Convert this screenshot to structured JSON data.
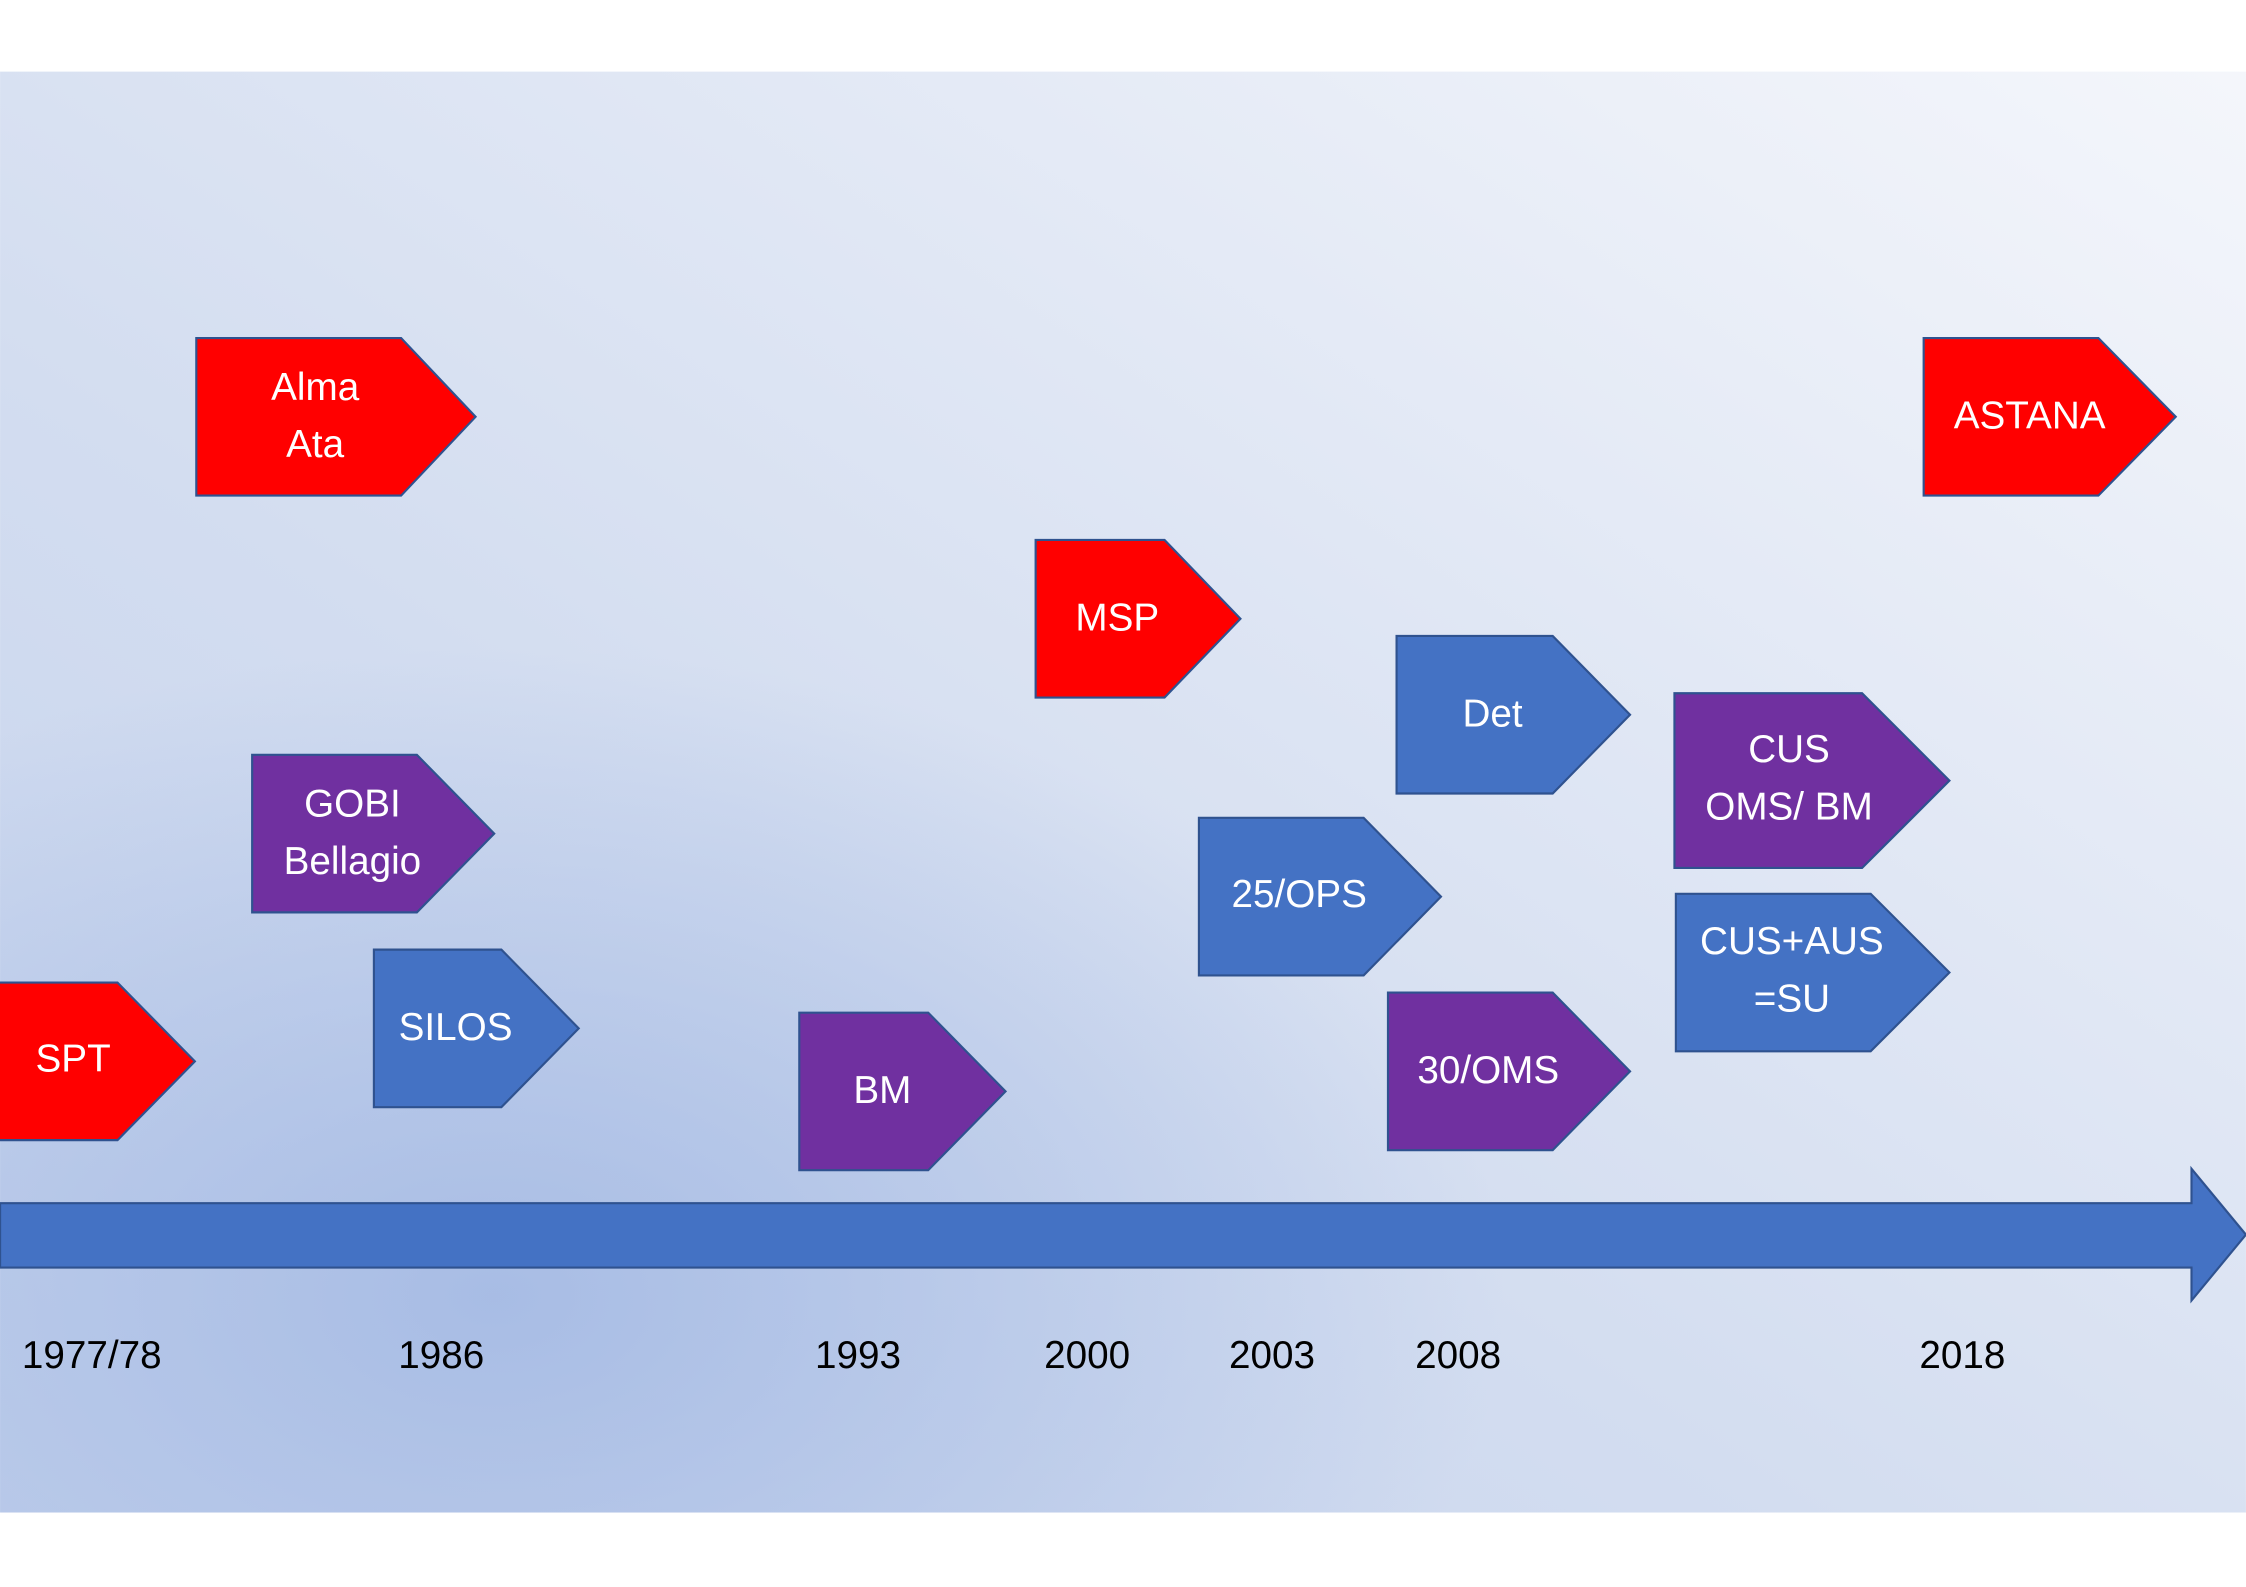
{
  "events": [
    {
      "lines": [
        "Alma",
        "Ata"
      ]
    },
    {
      "lines": [
        "SPT"
      ]
    },
    {
      "lines": [
        "GOBI",
        "Bellagio"
      ]
    },
    {
      "lines": [
        "SILOS"
      ]
    },
    {
      "lines": [
        "BM"
      ]
    },
    {
      "lines": [
        "MSP"
      ]
    },
    {
      "lines": [
        "25/OPS"
      ]
    },
    {
      "lines": [
        "Det"
      ]
    },
    {
      "lines": [
        "30/OMS"
      ]
    },
    {
      "lines": [
        "CUS",
        "OMS/ BM"
      ]
    },
    {
      "lines": [
        "CUS+AUS",
        "=SU"
      ]
    },
    {
      "lines": [
        "ASTANA"
      ]
    }
  ],
  "years": [
    "1977/78",
    "1986",
    "1993",
    "2000",
    "2003",
    "2008",
    "2018"
  ]
}
